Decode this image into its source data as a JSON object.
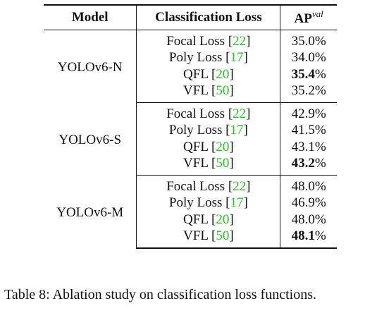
{
  "table": {
    "headers": {
      "model": "Model",
      "loss": "Classification Loss",
      "ap_base": "AP",
      "ap_sup": "val"
    },
    "groups": [
      {
        "model": "YOLOv6-N",
        "rows": [
          {
            "loss": "Focal Loss",
            "ref": "22",
            "ap_num": "35.0",
            "ap_unit": "%",
            "best": false
          },
          {
            "loss": "Poly Loss",
            "ref": "17",
            "ap_num": "34.0",
            "ap_unit": "%",
            "best": false
          },
          {
            "loss": "QFL",
            "ref": "20",
            "ap_num": "35.4",
            "ap_unit": "%",
            "best": true
          },
          {
            "loss": "VFL",
            "ref": "50",
            "ap_num": "35.2",
            "ap_unit": "%",
            "best": false
          }
        ]
      },
      {
        "model": "YOLOv6-S",
        "rows": [
          {
            "loss": "Focal Loss",
            "ref": "22",
            "ap_num": "42.9",
            "ap_unit": "%",
            "best": false
          },
          {
            "loss": "Poly Loss",
            "ref": "17",
            "ap_num": "41.5",
            "ap_unit": "%",
            "best": false
          },
          {
            "loss": "QFL",
            "ref": "20",
            "ap_num": "43.1",
            "ap_unit": "%",
            "best": false
          },
          {
            "loss": "VFL",
            "ref": "50",
            "ap_num": "43.2",
            "ap_unit": "%",
            "best": true
          }
        ]
      },
      {
        "model": "YOLOv6-M",
        "rows": [
          {
            "loss": "Focal Loss",
            "ref": "22",
            "ap_num": "48.0",
            "ap_unit": "%",
            "best": false
          },
          {
            "loss": "Poly Loss",
            "ref": "17",
            "ap_num": "46.9",
            "ap_unit": "%",
            "best": false
          },
          {
            "loss": "QFL",
            "ref": "20",
            "ap_num": "48.0",
            "ap_unit": "%",
            "best": false
          },
          {
            "loss": "VFL",
            "ref": "50",
            "ap_num": "48.1",
            "ap_unit": "%",
            "best": true
          }
        ]
      }
    ]
  },
  "caption": "Table 8: Ablation study on classification loss functions.",
  "colors": {
    "citation": "#22c322"
  }
}
